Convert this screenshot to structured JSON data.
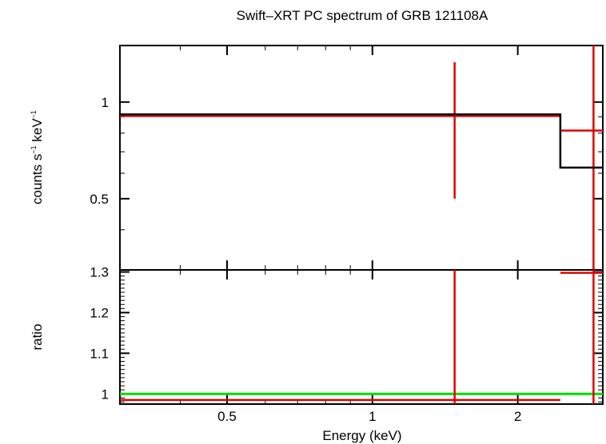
{
  "chart_data": {
    "type": "line",
    "title": "Swift–XRT PC spectrum of GRB 121108A",
    "xlabel": "Energy (keV)",
    "x_scale": "log",
    "xlim": [
      0.3,
      3.0
    ],
    "x_ticks": [
      {
        "value": 0.5,
        "label": "0.5"
      },
      {
        "value": 1,
        "label": "1"
      },
      {
        "value": 2,
        "label": "2"
      }
    ],
    "panels": [
      {
        "ylabel_main": "counts s",
        "ylabel_sup1": "−1",
        "ylabel_mid": " keV",
        "ylabel_sup2": "−1",
        "y_scale": "log",
        "ylim": [
          0.3,
          1.5
        ],
        "y_ticks": [
          {
            "value": 1,
            "label": "1"
          },
          {
            "value": 0.5,
            "label": "0.5"
          }
        ],
        "series": [
          {
            "role": "data",
            "color": "#e00000",
            "points": [
              {
                "x": 1.48,
                "y": 0.905,
                "x_lo": 0.3,
                "x_hi": 2.45,
                "y_lo": 0.5,
                "y_hi": 1.33
              },
              {
                "x": 2.87,
                "y": 0.815,
                "x_lo": 2.45,
                "x_hi": 3.0,
                "y_lo": 0.3,
                "y_hi": 1.5
              }
            ]
          },
          {
            "role": "model",
            "color": "#000000",
            "steps": [
              {
                "x_lo": 0.3,
                "x_hi": 2.45,
                "y": 0.915
              },
              {
                "x_lo": 2.45,
                "x_hi": 3.0,
                "y": 0.625
              }
            ]
          }
        ]
      },
      {
        "ylabel": "ratio",
        "y_scale": "linear",
        "ylim": [
          0.975,
          1.305
        ],
        "y_ticks": [
          {
            "value": 1.3,
            "label": "1.3"
          },
          {
            "value": 1.2,
            "label": "1.2"
          },
          {
            "value": 1.1,
            "label": "1.1"
          },
          {
            "value": 1,
            "label": "1"
          }
        ],
        "reference_line": {
          "y": 1.0,
          "color": "#00dd00"
        },
        "series": [
          {
            "role": "data",
            "color": "#e00000",
            "points": [
              {
                "x": 1.48,
                "y": 0.985,
                "x_lo": 0.3,
                "x_hi": 2.45,
                "y_lo": 0.975,
                "y_hi": 1.305
              },
              {
                "x": 2.87,
                "y": 1.298,
                "x_lo": 2.45,
                "x_hi": 3.0,
                "y_lo": 0.975,
                "y_hi": 1.305
              }
            ]
          }
        ]
      }
    ]
  }
}
